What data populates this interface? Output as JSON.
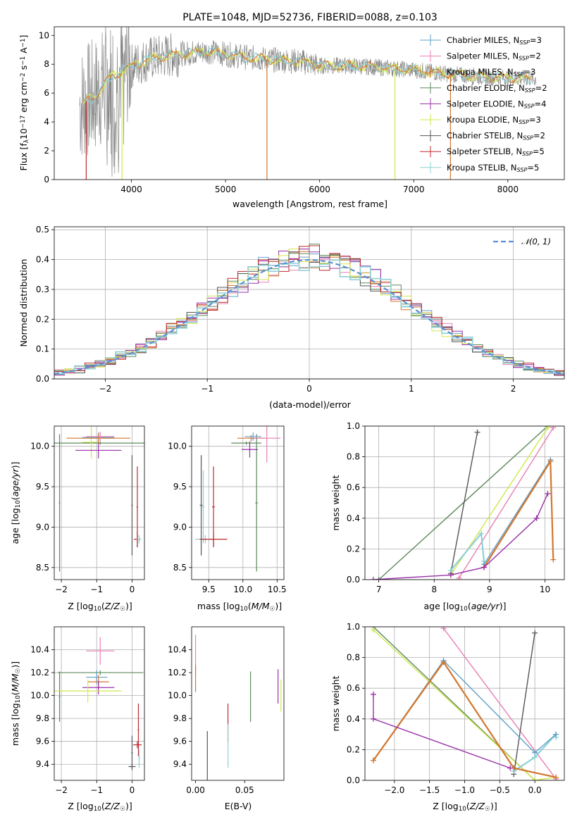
{
  "title": "PLATE=1048, MJD=52736, FIBERID=0088, z=0.103",
  "colors": {
    "Chabrier MILES": "#5fa1c8",
    "Salpeter MILES": "#e87fb4",
    "Kroupa MILES": "#d2772f",
    "Chabrier ELODIE": "#5c8a5c",
    "Salpeter ELODIE": "#9930a8",
    "Kroupa ELODIE": "#d2e64c",
    "Chabrier STELIB": "#555555",
    "Salpeter STELIB": "#c0282d",
    "Kroupa STELIB": "#8ed0d4",
    "data": "#888888",
    "normal": "#5b8fd6"
  },
  "chart_data": [
    {
      "id": "spectrum",
      "type": "line",
      "xlabel": "wavelength [Angstrom, rest frame]",
      "ylabel": "Flux [f_λ 10^-17 erg cm^-2 s^-1 A^-1]",
      "xlim": [
        3180,
        8600
      ],
      "ylim": [
        0,
        10.6
      ],
      "xticks": [
        4000,
        5000,
        6000,
        7000,
        8000
      ],
      "yticks": [
        0,
        2,
        4,
        6,
        8,
        10
      ],
      "legend_position": "top-right",
      "legend": [
        {
          "model": "Chabrier MILES",
          "n": "3"
        },
        {
          "model": "Salpeter MILES",
          "n": "2"
        },
        {
          "model": "Kroupa MILES",
          "n": "3"
        },
        {
          "model": "Chabrier ELODIE",
          "n": "2"
        },
        {
          "model": "Salpeter ELODIE",
          "n": "4"
        },
        {
          "model": "Kroupa ELODIE",
          "n": "3"
        },
        {
          "model": "Chabrier STELIB",
          "n": "2"
        },
        {
          "model": "Salpeter STELIB",
          "n": "5"
        },
        {
          "model": "Kroupa STELIB",
          "n": "5"
        }
      ],
      "continuum": [
        [
          3450,
          5.2
        ],
        [
          3600,
          5.7
        ],
        [
          3800,
          7.2
        ],
        [
          4000,
          7.9
        ],
        [
          4200,
          8.4
        ],
        [
          4500,
          8.7
        ],
        [
          4800,
          8.9
        ],
        [
          5000,
          8.7
        ],
        [
          5200,
          8.5
        ],
        [
          5500,
          8.3
        ],
        [
          5800,
          8.2
        ],
        [
          6000,
          7.9
        ],
        [
          6300,
          7.9
        ],
        [
          6600,
          7.8
        ],
        [
          7000,
          7.6
        ],
        [
          7400,
          7.3
        ],
        [
          7800,
          7.1
        ],
        [
          8300,
          7.0
        ]
      ]
    },
    {
      "id": "residuals",
      "type": "histogram",
      "xlabel": "(data-model)/error",
      "ylabel": "Normed distribution",
      "xlim": [
        -2.5,
        2.5
      ],
      "ylim": [
        0,
        0.51
      ],
      "xticks": [
        -2,
        -1,
        0,
        1,
        2
      ],
      "yticks": [
        0.0,
        0.1,
        0.2,
        0.3,
        0.4,
        0.5
      ],
      "grid": true,
      "legend_position": "top-right",
      "legend": [
        "𝒩(0, 1)"
      ],
      "bin_width": 0.1,
      "x_start": -2.5,
      "curve": "normal(0,1)"
    },
    {
      "id": "age-vs-Z",
      "type": "errorbar",
      "xlabel": "Z [log10(Z/Z☉)]",
      "ylabel": "age  [log10(age/yr)]",
      "xlim": [
        -2.2,
        0.35
      ],
      "ylim": [
        8.35,
        10.25
      ],
      "xticks": [
        -2,
        -1,
        0
      ],
      "yticks": [
        8.5,
        9.0,
        9.5,
        10.0
      ],
      "grid": true,
      "points": [
        {
          "model": "Chabrier ELODIE",
          "x": -0.9,
          "xerr": 1.3,
          "y": 10.04,
          "yerr": 0.02
        },
        {
          "model": "Chabrier ELODIE",
          "x": -2.05,
          "xerr": 0.02,
          "y": 9.3,
          "yerr": 0.85
        },
        {
          "model": "Kroupa ELODIE",
          "x": -1.15,
          "xerr": 0.25,
          "y": 10.05,
          "yerr": 0.2
        },
        {
          "model": "Salpeter ELODIE",
          "x": -0.95,
          "xerr": 0.65,
          "y": 9.95,
          "yerr": 0.1
        },
        {
          "model": "Chabrier MILES",
          "x": -0.95,
          "xerr": 0.45,
          "y": 10.11,
          "yerr": 0.06
        },
        {
          "model": "Kroupa MILES",
          "x": -0.95,
          "xerr": 0.9,
          "y": 10.1,
          "yerr": 0.06
        },
        {
          "model": "Salpeter MILES",
          "x": -0.9,
          "xerr": 0.4,
          "y": 10.12,
          "yerr": 0.06
        },
        {
          "model": "Chabrier STELIB",
          "x": 0.0,
          "xerr": 0.02,
          "y": 9.27,
          "yerr": 0.62
        },
        {
          "model": "Salpeter STELIB",
          "x": 0.15,
          "xerr": 0.1,
          "y": 8.85,
          "yerr": 0.1
        },
        {
          "model": "Salpeter STELIB",
          "x": 0.15,
          "xerr": 0.02,
          "y": 9.25,
          "yerr": 0.5
        },
        {
          "model": "Kroupa STELIB",
          "x": 0.2,
          "xerr": 0.06,
          "y": 8.85,
          "yerr": 0.05
        }
      ]
    },
    {
      "id": "age-vs-mass",
      "type": "errorbar",
      "xlabel": "mass [log10(M/M☉)]",
      "ylabel": "",
      "xlim": [
        9.25,
        10.6
      ],
      "ylim": [
        8.35,
        10.25
      ],
      "xticks": [
        9.5,
        10.0,
        10.5
      ],
      "yticks": [
        8.5,
        9.0,
        9.5,
        10.0
      ],
      "grid": true,
      "points": [
        {
          "model": "Chabrier ELODIE",
          "x": 10.05,
          "xerr": 0.22,
          "y": 10.04,
          "yerr": 0.02
        },
        {
          "model": "Chabrier ELODIE",
          "x": 10.2,
          "xerr": 0.02,
          "y": 9.3,
          "yerr": 0.85
        },
        {
          "model": "Salpeter ELODIE",
          "x": 10.1,
          "xerr": 0.12,
          "y": 9.96,
          "yerr": 0.1
        },
        {
          "model": "Kroupa MILES",
          "x": 10.12,
          "xerr": 0.2,
          "y": 10.1,
          "yerr": 0.04
        },
        {
          "model": "Salpeter MILES",
          "x": 10.35,
          "xerr": 0.2,
          "y": 10.1,
          "yerr": 0.3
        },
        {
          "model": "Chabrier MILES",
          "x": 10.15,
          "xerr": 0.12,
          "y": 10.12,
          "yerr": 0.05
        },
        {
          "model": "Chabrier STELIB",
          "x": 9.39,
          "xerr": 0.02,
          "y": 9.27,
          "yerr": 0.62
        },
        {
          "model": "Kroupa STELIB",
          "x": 9.45,
          "xerr": 0.15,
          "y": 8.85,
          "yerr": 0.05
        },
        {
          "model": "Kroupa STELIB",
          "x": 9.42,
          "xerr": 0.02,
          "y": 9.25,
          "yerr": 0.45
        },
        {
          "model": "Salpeter STELIB",
          "x": 9.57,
          "xerr": 0.2,
          "y": 8.85,
          "yerr": 0.08
        },
        {
          "model": "Salpeter STELIB",
          "x": 9.57,
          "xerr": 0.02,
          "y": 9.25,
          "yerr": 0.5
        }
      ]
    },
    {
      "id": "weight-vs-age",
      "type": "line",
      "xlabel": "age  [log10(age/yr)]",
      "ylabel": "mass weight",
      "xlim": [
        6.75,
        10.35
      ],
      "ylim": [
        0,
        1.0
      ],
      "xticks": [
        7,
        8,
        9,
        10
      ],
      "yticks": [
        0.0,
        0.2,
        0.4,
        0.6,
        0.8,
        1.0
      ],
      "grid": true,
      "series": [
        {
          "model": "Chabrier ELODIE",
          "x": [
            7.0,
            10.05
          ],
          "y": [
            0.0,
            1.0
          ]
        },
        {
          "model": "Kroupa ELODIE",
          "x": [
            8.3,
            10.05
          ],
          "y": [
            0.03,
            0.99
          ]
        },
        {
          "model": "Salpeter MILES",
          "x": [
            8.45,
            10.15
          ],
          "y": [
            0.01,
            0.99
          ]
        },
        {
          "model": "Chabrier STELIB",
          "x": [
            8.3,
            8.78
          ],
          "y": [
            0.04,
            0.96
          ]
        },
        {
          "model": "Kroupa STELIB",
          "x": [
            8.3,
            8.85,
            8.9
          ],
          "y": [
            0.06,
            0.3,
            0.12
          ]
        },
        {
          "model": "Chabrier MILES",
          "x": [
            8.9,
            10.1
          ],
          "y": [
            0.1,
            0.78
          ]
        },
        {
          "model": "Kroupa MILES",
          "x": [
            8.9,
            10.1,
            10.15
          ],
          "y": [
            0.08,
            0.77,
            0.13
          ]
        },
        {
          "model": "Salpeter ELODIE",
          "x": [
            6.9,
            8.3,
            8.9,
            9.85,
            10.05
          ],
          "y": [
            0.0,
            0.03,
            0.08,
            0.4,
            0.56
          ]
        }
      ]
    },
    {
      "id": "mass-vs-Z",
      "type": "errorbar",
      "xlabel": "Z [log10(Z/Z☉)]",
      "ylabel": "mass [log10(M/M☉)]",
      "xlim": [
        -2.2,
        0.35
      ],
      "ylim": [
        9.26,
        10.6
      ],
      "xticks": [
        -2,
        -1,
        0
      ],
      "yticks": [
        9.4,
        9.6,
        9.8,
        10.0,
        10.2,
        10.4
      ],
      "grid": true,
      "points": [
        {
          "model": "Salpeter MILES",
          "x": -0.9,
          "xerr": 0.4,
          "y": 10.39,
          "yerr": 0.12
        },
        {
          "model": "Chabrier ELODIE",
          "x": -0.9,
          "xerr": 1.2,
          "y": 10.2,
          "yerr": 0.02
        },
        {
          "model": "Chabrier ELODIE",
          "x": -2.05,
          "xerr": 0.02,
          "y": 9.99,
          "yerr": 0.22
        },
        {
          "model": "Chabrier MILES",
          "x": -1.0,
          "xerr": 0.3,
          "y": 10.16,
          "yerr": 0.06
        },
        {
          "model": "Kroupa MILES",
          "x": -0.95,
          "xerr": 0.3,
          "y": 10.12,
          "yerr": 0.06
        },
        {
          "model": "Salpeter ELODIE",
          "x": -0.95,
          "xerr": 0.45,
          "y": 10.07,
          "yerr": 0.06
        },
        {
          "model": "Kroupa ELODIE",
          "x": -1.25,
          "xerr": 0.95,
          "y": 10.04,
          "yerr": 0.1
        },
        {
          "model": "Salpeter STELIB",
          "x": 0.15,
          "xerr": 0.12,
          "y": 9.57,
          "yerr": 0.03
        },
        {
          "model": "Salpeter STELIB",
          "x": 0.18,
          "xerr": 0.02,
          "y": 9.7,
          "yerr": 0.23
        },
        {
          "model": "Chabrier STELIB",
          "x": 0.0,
          "xerr": 0.1,
          "y": 9.38,
          "yerr": 0.02
        },
        {
          "model": "Chabrier STELIB",
          "x": 0.0,
          "xerr": 0.02,
          "y": 9.5,
          "yerr": 0.15
        },
        {
          "model": "Kroupa STELIB",
          "x": 0.2,
          "xerr": 0.02,
          "y": 9.45,
          "yerr": 0.08
        }
      ]
    },
    {
      "id": "mass-vs-ebv",
      "type": "errorbar",
      "xlabel": "E(B-V)",
      "ylabel": "",
      "xlim": [
        -0.004,
        0.09
      ],
      "ylim": [
        9.26,
        10.6
      ],
      "xticks": [
        0.0,
        0.05
      ],
      "yticks": [
        9.4,
        9.6,
        9.8,
        10.0,
        10.2,
        10.4
      ],
      "grid": false,
      "points": [
        {
          "model": "Salpeter MILES",
          "x": 0.0,
          "xerr": 0.0,
          "y": 10.36,
          "yerr": 0.17
        },
        {
          "model": "Kroupa MILES",
          "x": 0.0,
          "xerr": 0.0,
          "y": 10.15,
          "yerr": 0.12
        },
        {
          "model": "Chabrier STELIB",
          "x": 0.012,
          "xerr": 0.0,
          "y": 9.47,
          "yerr": 0.22
        },
        {
          "model": "Salpeter STELIB",
          "x": 0.033,
          "xerr": 0.0,
          "y": 9.76,
          "yerr": 0.17
        },
        {
          "model": "Kroupa STELIB",
          "x": 0.033,
          "xerr": 0.0,
          "y": 9.56,
          "yerr": 0.19
        },
        {
          "model": "Chabrier ELODIE",
          "x": 0.056,
          "xerr": 0.0,
          "y": 9.99,
          "yerr": 0.22
        },
        {
          "model": "Salpeter ELODIE",
          "x": 0.084,
          "xerr": 0.0,
          "y": 10.08,
          "yerr": 0.15
        },
        {
          "model": "Kroupa ELODIE",
          "x": 0.087,
          "xerr": 0.0,
          "y": 10.0,
          "yerr": 0.14
        }
      ]
    },
    {
      "id": "weight-vs-Z",
      "type": "line",
      "xlabel": "Z [log10(Z/Z☉)]",
      "ylabel": "mass weight",
      "xlim": [
        -2.42,
        0.42
      ],
      "ylim": [
        0,
        1.0
      ],
      "xticks": [
        -2.0,
        -1.5,
        -1.0,
        -0.5,
        0.0
      ],
      "yticks": [
        0.0,
        0.2,
        0.4,
        0.6,
        0.8,
        1.0
      ],
      "grid": true,
      "series": [
        {
          "model": "Chabrier ELODIE",
          "x": [
            -2.3,
            0.0
          ],
          "y": [
            1.0,
            0.0
          ]
        },
        {
          "model": "Kroupa ELODIE",
          "x": [
            -2.3,
            0.0,
            0.3
          ],
          "y": [
            0.98,
            0.0,
            0.02
          ]
        },
        {
          "model": "Salpeter MILES",
          "x": [
            -1.3,
            0.3
          ],
          "y": [
            0.99,
            0.01
          ]
        },
        {
          "model": "Chabrier STELIB",
          "x": [
            -0.3,
            0.0
          ],
          "y": [
            0.04,
            0.96
          ]
        },
        {
          "model": "Kroupa STELIB",
          "x": [
            -0.3,
            0.0,
            0.3,
            0.3
          ],
          "y": [
            0.06,
            0.15,
            0.3,
            0.28
          ]
        },
        {
          "model": "Chabrier MILES",
          "x": [
            -2.3,
            -1.3,
            0.0,
            0.3
          ],
          "y": [
            0.13,
            0.78,
            0.18,
            0.3
          ]
        },
        {
          "model": "Kroupa MILES",
          "x": [
            -2.3,
            -1.3,
            -0.3,
            0.3
          ],
          "y": [
            0.13,
            0.77,
            0.08,
            0.02
          ]
        },
        {
          "model": "Salpeter ELODIE",
          "x": [
            -2.3,
            -2.3,
            -0.35
          ],
          "y": [
            0.56,
            0.4,
            0.08
          ]
        }
      ]
    }
  ]
}
